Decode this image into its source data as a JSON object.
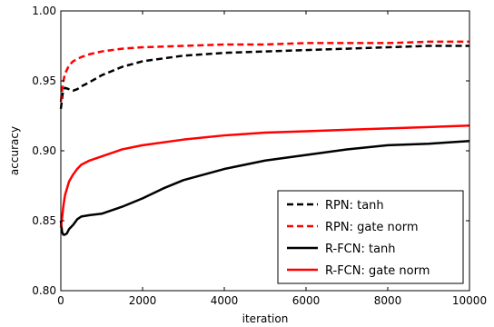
{
  "chart_data": {
    "type": "line",
    "title": "",
    "xlabel": "iteration",
    "ylabel": "accuracy",
    "xlim": [
      0,
      10000
    ],
    "ylim": [
      0.8,
      1.0
    ],
    "xticks": [
      0,
      2000,
      4000,
      6000,
      8000,
      10000
    ],
    "yticks": [
      0.8,
      0.85,
      0.9,
      0.95,
      1.0
    ],
    "xtick_labels": [
      "0",
      "2000",
      "4000",
      "6000",
      "8000",
      "10000"
    ],
    "ytick_labels": [
      "0.80",
      "0.85",
      "0.90",
      "0.95",
      "1.00"
    ],
    "grid": false,
    "legend_position": "bottom-right",
    "series": [
      {
        "name": "RPN: tanh",
        "color": "#000000",
        "style": "dashed",
        "x": [
          0,
          50,
          100,
          200,
          300,
          400,
          500,
          700,
          1000,
          1500,
          2000,
          2500,
          3000,
          4000,
          5000,
          6000,
          7000,
          8000,
          9000,
          10000
        ],
        "y": [
          0.93,
          0.942,
          0.945,
          0.944,
          0.943,
          0.944,
          0.946,
          0.949,
          0.954,
          0.96,
          0.964,
          0.966,
          0.968,
          0.97,
          0.971,
          0.972,
          0.973,
          0.974,
          0.975,
          0.975
        ]
      },
      {
        "name": "RPN: gate norm",
        "color": "#ff0000",
        "style": "dashed",
        "x": [
          0,
          50,
          100,
          200,
          300,
          500,
          700,
          1000,
          1500,
          2000,
          3000,
          4000,
          5000,
          6000,
          7000,
          8000,
          9000,
          10000
        ],
        "y": [
          0.935,
          0.948,
          0.955,
          0.961,
          0.964,
          0.967,
          0.969,
          0.971,
          0.973,
          0.974,
          0.975,
          0.976,
          0.976,
          0.977,
          0.977,
          0.977,
          0.978,
          0.978
        ]
      },
      {
        "name": "R-FCN: tanh",
        "color": "#000000",
        "style": "solid",
        "x": [
          0,
          30,
          60,
          100,
          150,
          200,
          300,
          400,
          500,
          700,
          1000,
          1500,
          2000,
          2500,
          3000,
          4000,
          5000,
          6000,
          7000,
          8000,
          9000,
          10000
        ],
        "y": [
          0.85,
          0.842,
          0.84,
          0.84,
          0.841,
          0.844,
          0.847,
          0.851,
          0.853,
          0.854,
          0.855,
          0.86,
          0.866,
          0.873,
          0.879,
          0.887,
          0.893,
          0.897,
          0.901,
          0.904,
          0.905,
          0.907
        ]
      },
      {
        "name": "R-FCN: gate norm",
        "color": "#ff0000",
        "style": "solid",
        "x": [
          0,
          30,
          60,
          100,
          150,
          200,
          300,
          400,
          500,
          700,
          1000,
          1500,
          2000,
          3000,
          4000,
          5000,
          6000,
          7000,
          8000,
          9000,
          10000
        ],
        "y": [
          0.845,
          0.852,
          0.86,
          0.868,
          0.873,
          0.878,
          0.883,
          0.887,
          0.89,
          0.893,
          0.896,
          0.901,
          0.904,
          0.908,
          0.911,
          0.913,
          0.914,
          0.915,
          0.916,
          0.917,
          0.918
        ]
      }
    ]
  }
}
